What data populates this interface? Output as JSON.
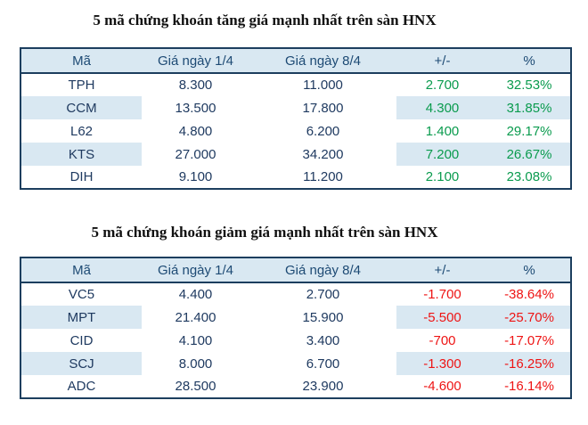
{
  "colors": {
    "page_bg": "#ffffff",
    "title_text": "#111111",
    "border": "#1c3e5e",
    "header_bg": "#d9e8f2",
    "stripe": "#d9e8f2",
    "header_text": "#1d4a74",
    "data_text": "#1f3a60",
    "up": "#0a9b4e",
    "down": "#ee1414"
  },
  "chart_data": [
    {
      "type": "table",
      "title": "5 mã chứng khoán tăng giá mạnh nhất trên sàn HNX",
      "direction": "gainers",
      "value_color": "#0a9b4e",
      "columns": [
        "Mã",
        "Giá ngày 1/4",
        "Giá ngày 8/4",
        "+/-",
        "%"
      ],
      "rows": [
        [
          "TPH",
          "8.300",
          "11.000",
          "2.700",
          "32.53%"
        ],
        [
          "CCM",
          "13.500",
          "17.800",
          "4.300",
          "31.85%"
        ],
        [
          "L62",
          "4.800",
          "6.200",
          "1.400",
          "29.17%"
        ],
        [
          "KTS",
          "27.000",
          "34.200",
          "7.200",
          "26.67%"
        ],
        [
          "DIH",
          "9.100",
          "11.200",
          "2.100",
          "23.08%"
        ]
      ]
    },
    {
      "type": "table",
      "title": "5 mã chứng khoán giảm giá mạnh nhất trên sàn HNX",
      "direction": "losers",
      "value_color": "#ee1414",
      "columns": [
        "Mã",
        "Giá ngày 1/4",
        "Giá ngày 8/4",
        "+/-",
        "%"
      ],
      "rows": [
        [
          "VC5",
          "4.400",
          "2.700",
          "-1.700",
          "-38.64%"
        ],
        [
          "MPT",
          "21.400",
          "15.900",
          "-5.500",
          "-25.70%"
        ],
        [
          "CID",
          "4.100",
          "3.400",
          "-700",
          "-17.07%"
        ],
        [
          "SCJ",
          "8.000",
          "6.700",
          "-1.300",
          "-16.25%"
        ],
        [
          "ADC",
          "28.500",
          "23.900",
          "-4.600",
          "-16.14%"
        ]
      ]
    }
  ]
}
